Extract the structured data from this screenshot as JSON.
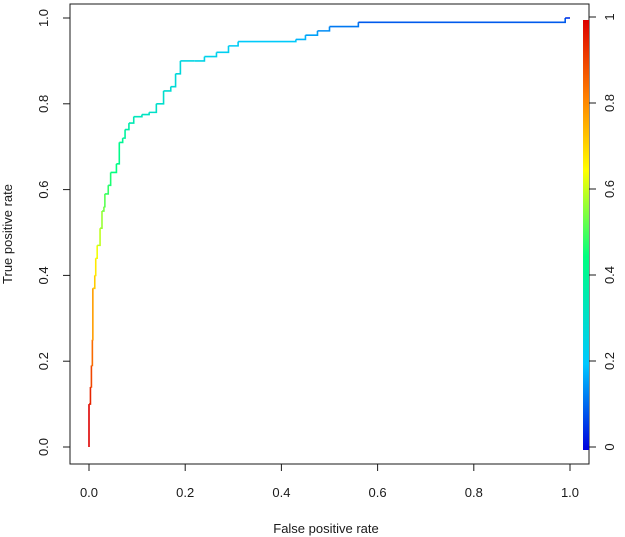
{
  "chart_data": {
    "type": "line",
    "title": "",
    "xlabel": "False positive rate",
    "ylabel": "True positive rate",
    "xlim": [
      0,
      1
    ],
    "ylim": [
      0,
      1
    ],
    "x_ticks": [
      "0.0",
      "0.2",
      "0.4",
      "0.6",
      "0.8",
      "1.0"
    ],
    "y_ticks": [
      "0.0",
      "0.2",
      "0.4",
      "0.6",
      "0.8",
      "1.0"
    ],
    "colorbar": {
      "range": [
        0,
        1
      ],
      "ticks": [
        "0",
        "0.2",
        "0.4",
        "0.6",
        "0.8",
        "1"
      ],
      "colormap": [
        "#0000dd",
        "#00c8ff",
        "#00ff80",
        "#ffff00",
        "#ff8000",
        "#dd0000"
      ]
    },
    "grid": false,
    "legend": "none",
    "series": [
      {
        "points": [
          [
            0.0,
            0.0,
            1.0
          ],
          [
            0.0,
            0.1,
            0.95
          ],
          [
            0.003,
            0.14,
            0.9
          ],
          [
            0.005,
            0.19,
            0.85
          ],
          [
            0.007,
            0.25,
            0.78
          ],
          [
            0.008,
            0.37,
            0.72
          ],
          [
            0.012,
            0.4,
            0.68
          ],
          [
            0.014,
            0.44,
            0.64
          ],
          [
            0.017,
            0.47,
            0.6
          ],
          [
            0.023,
            0.51,
            0.57
          ],
          [
            0.027,
            0.55,
            0.54
          ],
          [
            0.031,
            0.56,
            0.52
          ],
          [
            0.033,
            0.59,
            0.49
          ],
          [
            0.04,
            0.61,
            0.47
          ],
          [
            0.045,
            0.64,
            0.45
          ],
          [
            0.057,
            0.66,
            0.43
          ],
          [
            0.063,
            0.71,
            0.41
          ],
          [
            0.07,
            0.72,
            0.39
          ],
          [
            0.075,
            0.74,
            0.37
          ],
          [
            0.083,
            0.755,
            0.35
          ],
          [
            0.093,
            0.77,
            0.33
          ],
          [
            0.11,
            0.775,
            0.32
          ],
          [
            0.125,
            0.78,
            0.31
          ],
          [
            0.14,
            0.8,
            0.3
          ],
          [
            0.155,
            0.83,
            0.29
          ],
          [
            0.17,
            0.84,
            0.28
          ],
          [
            0.18,
            0.87,
            0.27
          ],
          [
            0.19,
            0.9,
            0.26
          ],
          [
            0.22,
            0.9,
            0.25
          ],
          [
            0.24,
            0.91,
            0.24
          ],
          [
            0.265,
            0.92,
            0.23
          ],
          [
            0.29,
            0.935,
            0.22
          ],
          [
            0.31,
            0.945,
            0.21
          ],
          [
            0.43,
            0.95,
            0.18
          ],
          [
            0.45,
            0.96,
            0.16
          ],
          [
            0.475,
            0.97,
            0.14
          ],
          [
            0.5,
            0.98,
            0.12
          ],
          [
            0.56,
            0.99,
            0.09
          ],
          [
            0.99,
            1.0,
            0.05
          ],
          [
            1.0,
            1.0,
            0.02
          ]
        ]
      }
    ]
  }
}
